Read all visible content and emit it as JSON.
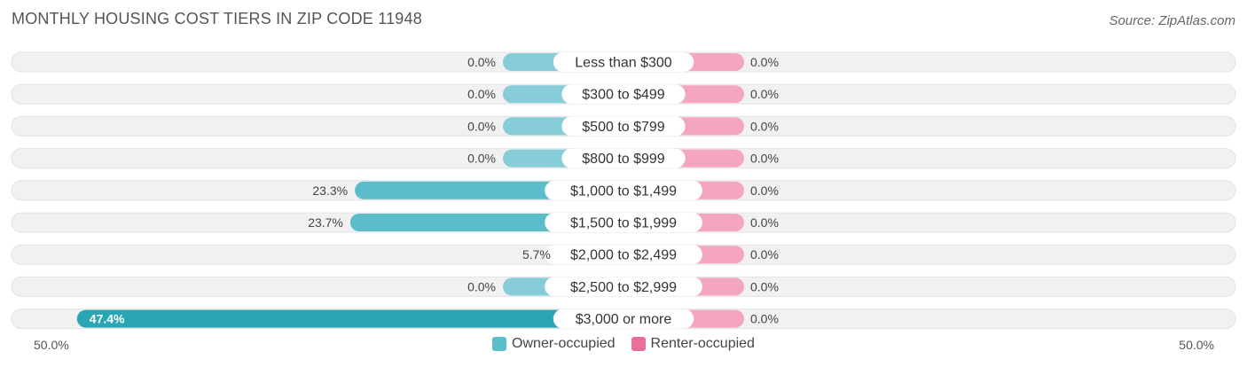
{
  "title": "MONTHLY HOUSING COST TIERS IN ZIP CODE 11948",
  "source": "Source: ZipAtlas.com",
  "colors": {
    "owner": "#5bbcca",
    "owner_light": "#86cdd8",
    "owner_dark": "#2aa5b4",
    "renter": "#f4a6c0",
    "renter_swatch": "#ea6f99",
    "track": "#efefef"
  },
  "chart_data": {
    "type": "bar",
    "orientation": "horizontal-diverging",
    "categories": [
      "Less than $300",
      "$300 to $499",
      "$500 to $799",
      "$800 to $999",
      "$1,000 to $1,499",
      "$1,500 to $1,999",
      "$2,000 to $2,499",
      "$2,500 to $2,999",
      "$3,000 or more"
    ],
    "series": [
      {
        "name": "Owner-occupied",
        "values": [
          0.0,
          0.0,
          0.0,
          0.0,
          23.3,
          23.7,
          5.7,
          0.0,
          47.4
        ],
        "labels": [
          "0.0%",
          "0.0%",
          "0.0%",
          "0.0%",
          "23.3%",
          "23.7%",
          "5.7%",
          "0.0%",
          "47.4%"
        ]
      },
      {
        "name": "Renter-occupied",
        "values": [
          0.0,
          0.0,
          0.0,
          0.0,
          0.0,
          0.0,
          0.0,
          0.0,
          0.0
        ],
        "labels": [
          "0.0%",
          "0.0%",
          "0.0%",
          "0.0%",
          "0.0%",
          "0.0%",
          "0.0%",
          "0.0%",
          "0.0%"
        ]
      }
    ],
    "xlim": [
      -50,
      50
    ],
    "axis_left_label": "50.0%",
    "axis_right_label": "50.0%",
    "legend_position": "bottom-center"
  }
}
